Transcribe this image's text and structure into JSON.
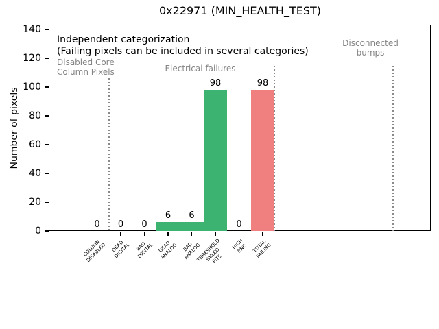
{
  "chart_data": {
    "type": "bar",
    "title": "0x22971 (MIN_HEALTH_TEST)",
    "xlabel": "",
    "ylabel": "Number of pixels",
    "categories": [
      "COLUMN DISABLED",
      "DEAD DIGITAL",
      "BAD DIGITAL",
      "DEAD ANALOG",
      "BAD ANALOG",
      "THRESHOLD FAILED FITS",
      "HIGH ENC",
      "TOTAL FAILING"
    ],
    "tick_display": [
      "COLUMN\nDISABLED",
      "DEAD\nDIGITAL",
      "BAD\nDIGITAL",
      "DEAD\nANALOG",
      "BAD\nANALOG",
      "THRESHOLD\nFAILED\nFITS",
      "HIGH\nENC",
      "TOTAL\nFAILING"
    ],
    "values": [
      0,
      0,
      0,
      6,
      6,
      98,
      0,
      98
    ],
    "value_labels": [
      "0",
      "0",
      "0",
      "6",
      "6",
      "98",
      "0",
      "98"
    ],
    "bar_colors": [
      "#3cb371",
      "#3cb371",
      "#3cb371",
      "#3cb371",
      "#3cb371",
      "#3cb371",
      "#3cb371",
      "#f08080"
    ],
    "ylim": [
      0,
      143
    ],
    "yticks": [
      0,
      20,
      40,
      60,
      80,
      100,
      120,
      140
    ],
    "grid": false,
    "legend": null,
    "annotations": {
      "line1": "Independent categorization",
      "line2": "(Failing pixels can be included in several categories)"
    },
    "sections": [
      {
        "label": "Disabled Core\nColumn Pixels"
      },
      {
        "label": "Electrical failures"
      },
      {
        "label": "Disconnected\nbumps"
      }
    ],
    "dividers_at": [
      0.5,
      7.5,
      12.5
    ],
    "colors": {
      "bar_green": "#3cb371",
      "bar_red": "#f08080",
      "annotation_gray": "#848484",
      "divider_gray": "#8a8a8a"
    }
  }
}
